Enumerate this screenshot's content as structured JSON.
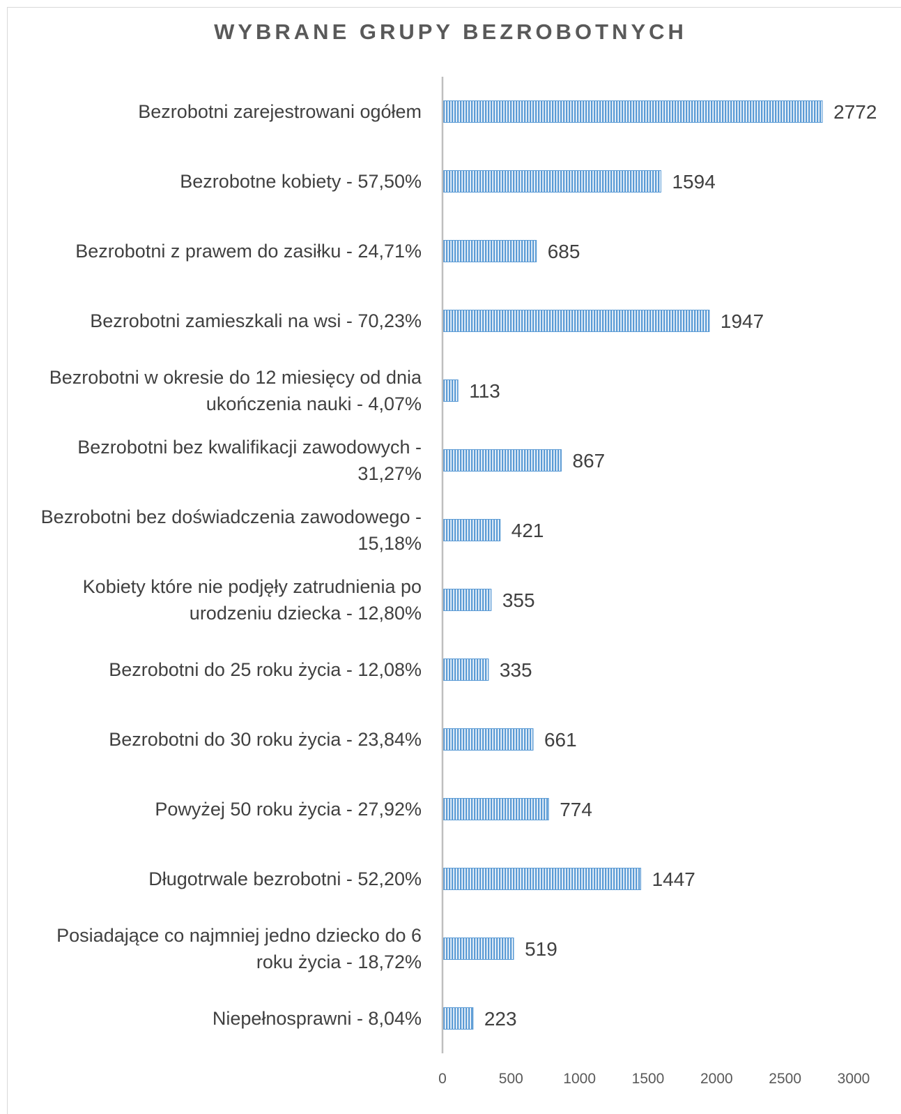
{
  "chart_data": {
    "type": "bar",
    "orientation": "horizontal",
    "title": "WYBRANE GRUPY BEZROBOTNYCH",
    "categories": [
      [
        "Bezrobotni zarejestrowani ogółem"
      ],
      [
        "Bezrobotne kobiety - 57,50%"
      ],
      [
        "Bezrobotni z prawem do zasiłku - 24,71%"
      ],
      [
        "Bezrobotni zamieszkali na wsi - 70,23%"
      ],
      [
        "Bezrobotni w okresie do 12 miesięcy od dnia",
        "ukończenia nauki - 4,07%"
      ],
      [
        "Bezrobotni bez kwalifikacji zawodowych -",
        "31,27%"
      ],
      [
        "Bezrobotni bez doświadczenia zawodowego -",
        "15,18%"
      ],
      [
        "Kobiety które nie podjęły zatrudnienia po",
        "urodzeniu dziecka - 12,80%"
      ],
      [
        "Bezrobotni do 25 roku życia - 12,08%"
      ],
      [
        "Bezrobotni do 30 roku życia - 23,84%"
      ],
      [
        "Powyżej 50 roku życia - 27,92%"
      ],
      [
        "Długotrwale bezrobotni - 52,20%"
      ],
      [
        "Posiadające co najmniej jedno dziecko do 6",
        "roku życia - 18,72%"
      ],
      [
        "Niepełnosprawni - 8,04%"
      ]
    ],
    "values": [
      2772,
      1594,
      685,
      1947,
      113,
      867,
      421,
      355,
      335,
      661,
      774,
      1447,
      519,
      223
    ],
    "xlim": [
      0,
      3000
    ],
    "xticks": [
      "0",
      "500",
      "1000",
      "1500",
      "2000",
      "2500",
      "3000"
    ],
    "grid": false,
    "bar_color": "#5b9bd5",
    "bar_stripe_color": "#ffffff",
    "axis_color": "#bfbfbf"
  }
}
